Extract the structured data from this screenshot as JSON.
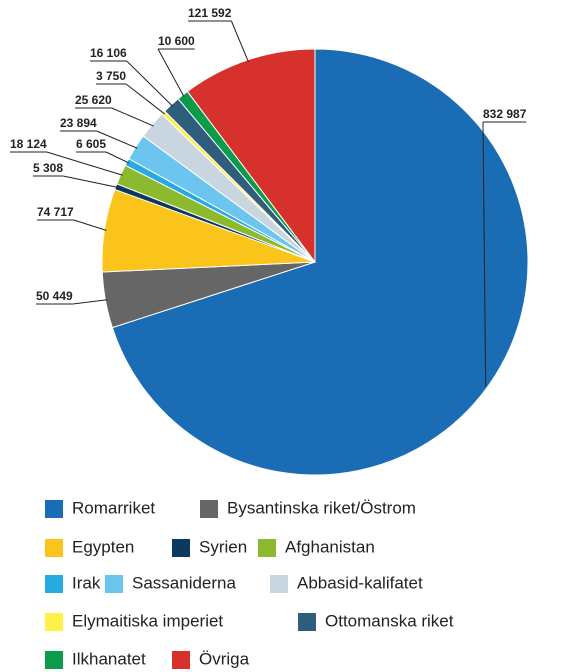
{
  "chart_data": {
    "type": "pie",
    "categories": [
      "Romarriket",
      "Bysantinska riket/Östrom",
      "Egypten",
      "Syrien",
      "Afghanistan",
      "Irak",
      "Sassaniderna",
      "Abbasid-kalifatet",
      "Elymaitiska imperiet",
      "Ottomanska riket",
      "Ilkhanatet",
      "Övriga"
    ],
    "values": [
      832987,
      50449,
      74717,
      5308,
      18124,
      6605,
      23894,
      25620,
      3750,
      16106,
      10600,
      121592
    ],
    "value_labels": [
      "832 987",
      "50 449",
      "74 717",
      "5 308",
      "18 124",
      "6 605",
      "23 894",
      "25 620",
      "3 750",
      "16 106",
      "10 600",
      "121 592"
    ],
    "colors": [
      "#1a6db5",
      "#666666",
      "#fbc41a",
      "#0b3a5e",
      "#8db92e",
      "#27a9e1",
      "#6cc5ef",
      "#c9d6df",
      "#fff04a",
      "#2f5d7c",
      "#0c9b4a",
      "#d7312e"
    ],
    "start_angle": 90,
    "direction": "clockwise",
    "legend": "bottom"
  }
}
